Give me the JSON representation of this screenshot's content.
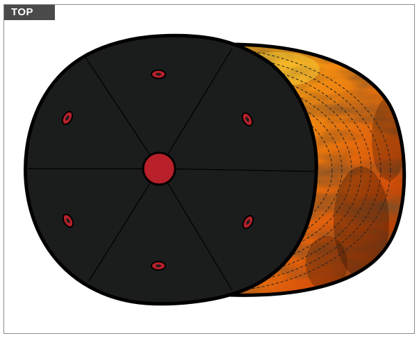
{
  "view": {
    "label": "TOP"
  },
  "cap": {
    "crown_color": "#1b1c1c",
    "button_color": "#b8202a",
    "eyelet_color": "#b8202a",
    "visor_pattern": "flame",
    "visor_colors": [
      "#f7c21c",
      "#f08a12",
      "#d9540a",
      "#3a1808"
    ],
    "stitch_color": "#222222",
    "panel_count": 6,
    "eyelet_count": 6
  }
}
